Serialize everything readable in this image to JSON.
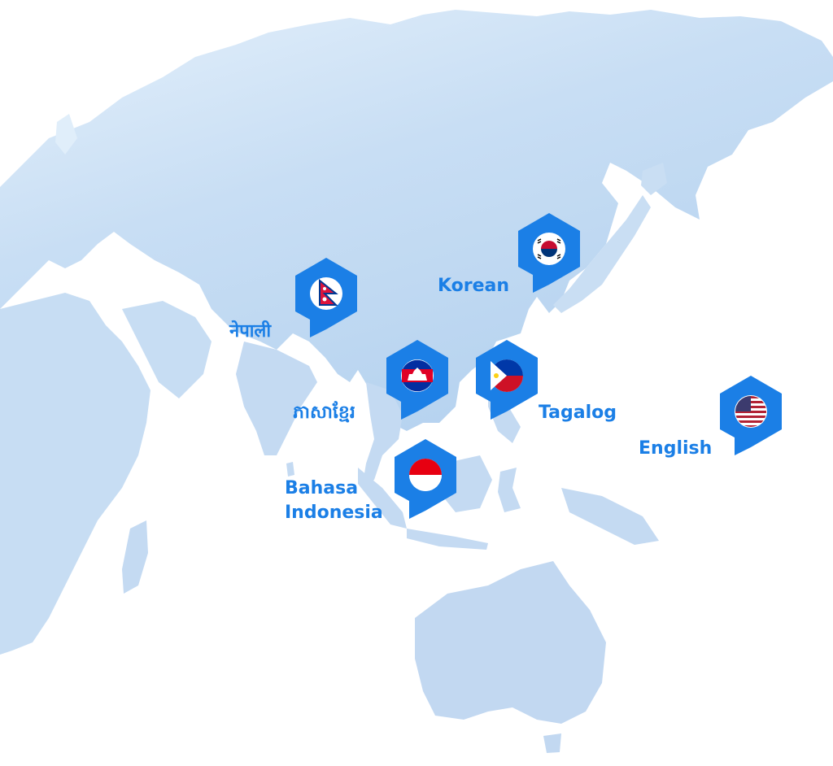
{
  "colors": {
    "land_light": "#dcecf9",
    "land_dark": "#b9d6f1",
    "accent": "#1b7fe6",
    "label": "#1b7fe6"
  },
  "languages": [
    {
      "label": "नेपाली",
      "flag": "nepal-flag-icon"
    },
    {
      "label": "Korean",
      "flag": "south-korea-flag-icon"
    },
    {
      "label": "ភាសាខ្មែរ",
      "flag": "cambodia-flag-icon"
    },
    {
      "label": "Tagalog",
      "flag": "philippines-flag-icon"
    },
    {
      "label": "English",
      "flag": "usa-flag-icon"
    },
    {
      "label": "Bahasa Indonesia",
      "flag": "indonesia-flag-icon"
    }
  ]
}
